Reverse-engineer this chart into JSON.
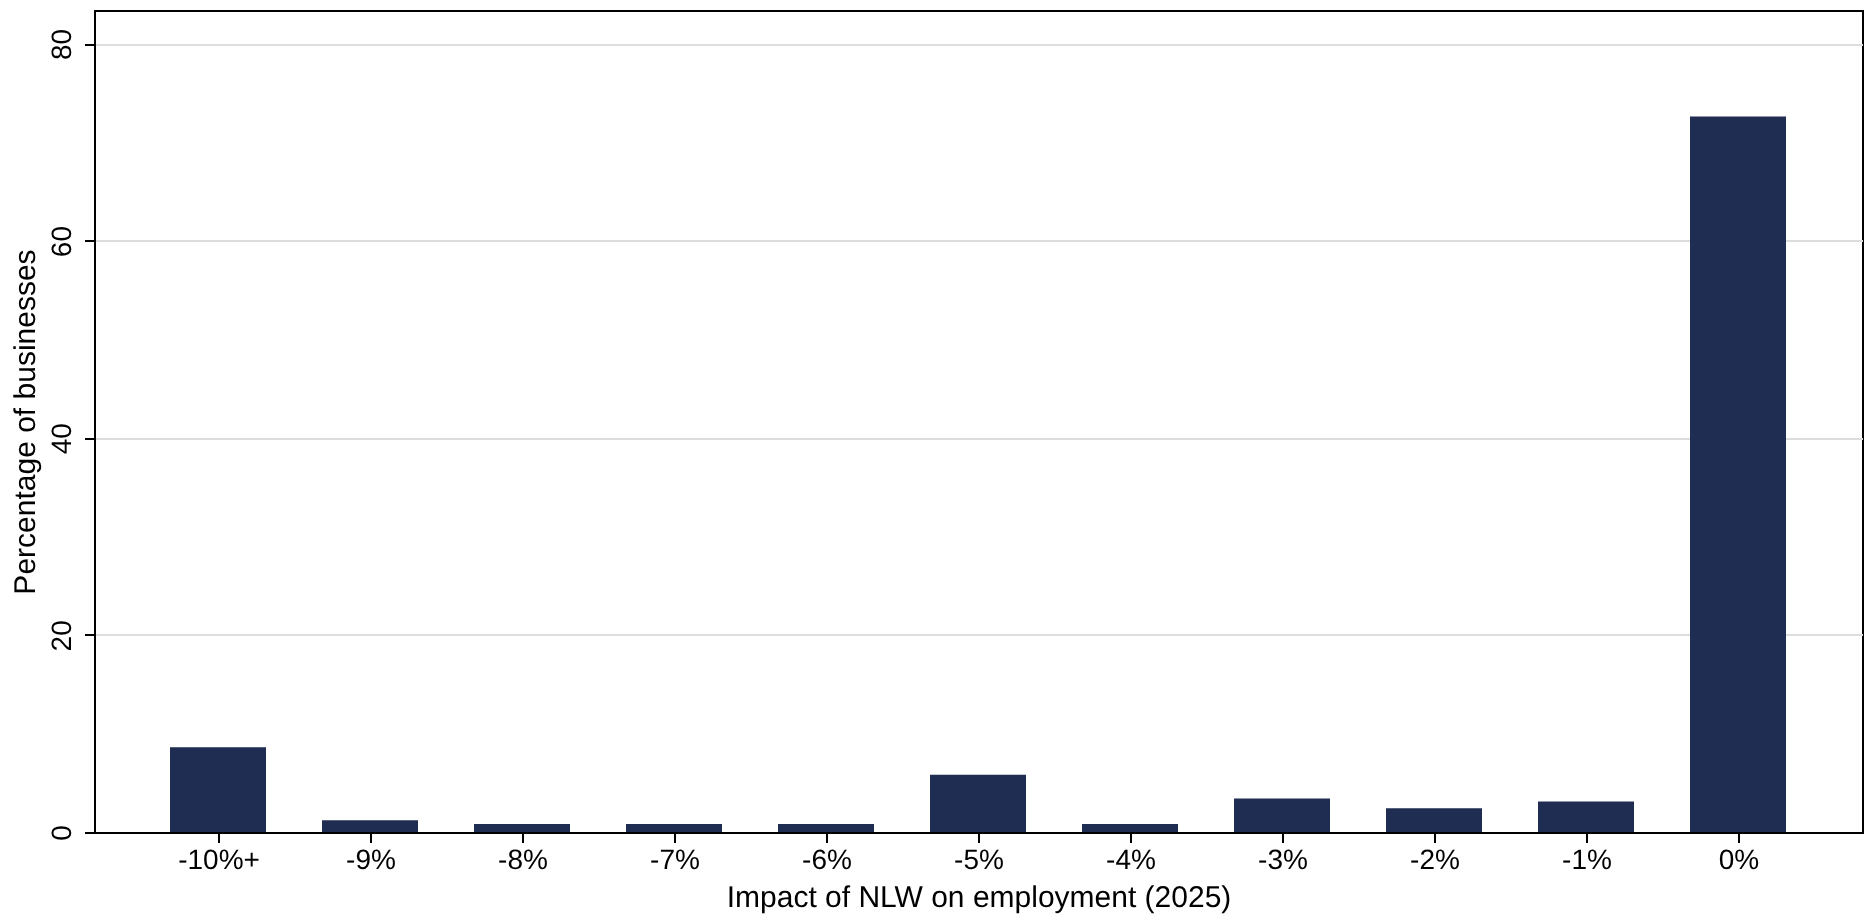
{
  "chart_data": {
    "type": "bar",
    "xlabel": "Impact of NLW on employment (2025)",
    "ylabel": "Percentage of businesses",
    "categories": [
      "-10%+",
      "-9%",
      "-8%",
      "-7%",
      "-6%",
      "-5%",
      "-4%",
      "-3%",
      "-2%",
      "-1%",
      "0%"
    ],
    "values": [
      8.6,
      1.2,
      0.8,
      0.8,
      0.8,
      5.8,
      0.8,
      3.4,
      2.4,
      3.1,
      72.6
    ],
    "color": "#1f2d52",
    "ylim": [
      0,
      83.4
    ],
    "yticks": [
      0,
      20,
      40,
      60,
      80
    ],
    "grid": "y"
  }
}
